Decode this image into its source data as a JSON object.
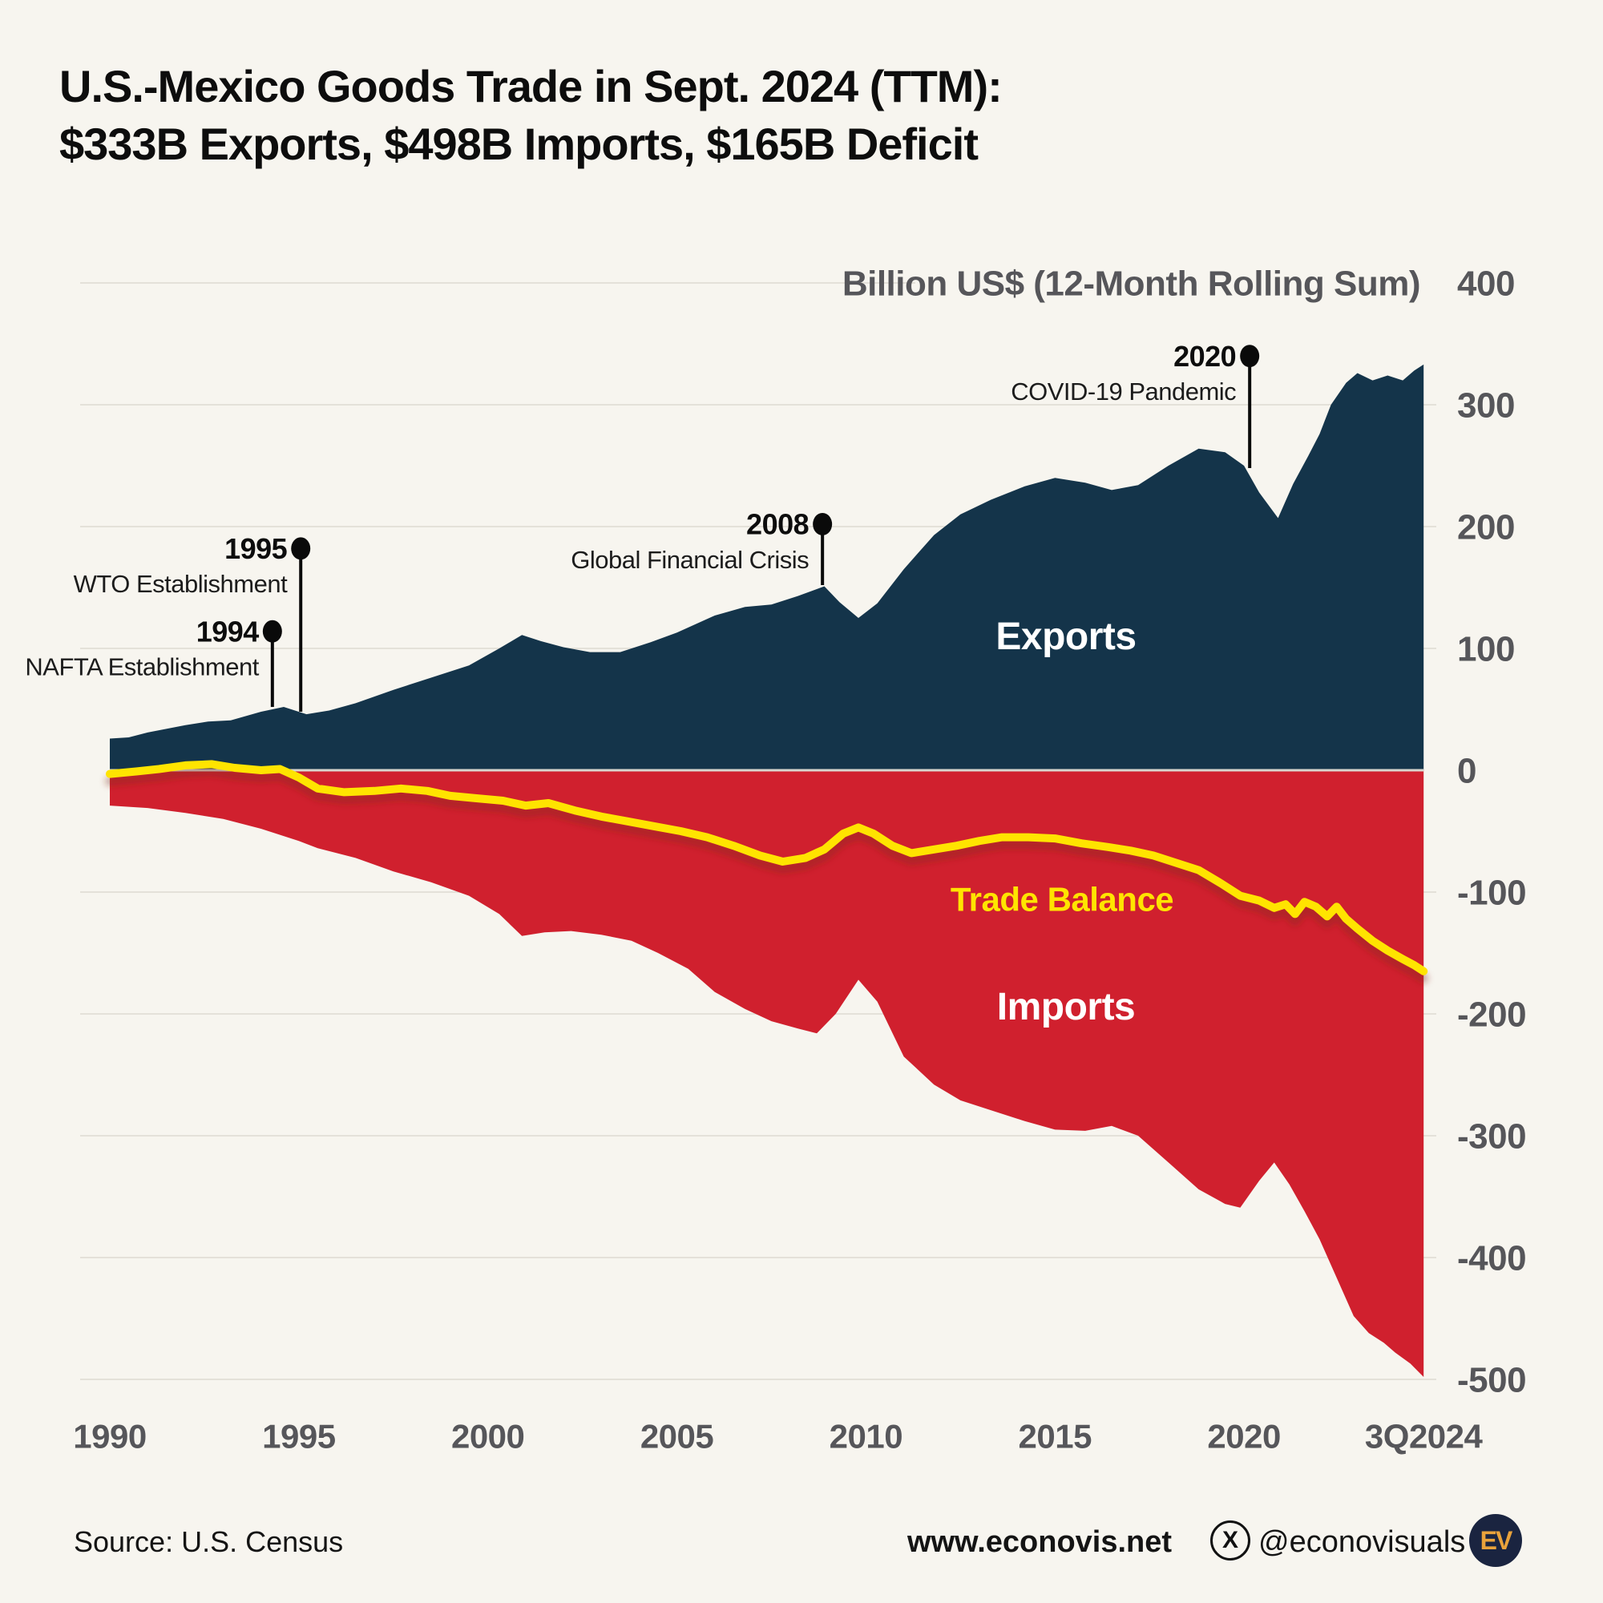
{
  "title": {
    "line1": "U.S.-Mexico Goods Trade in Sept. 2024 (TTM):",
    "line2": "$333B Exports, $498B Imports, $165B Deficit"
  },
  "summary": {
    "period": "Sept. 2024 (TTM)",
    "exports_billion": 333,
    "imports_billion": 498,
    "deficit_billion": 165
  },
  "colors": {
    "background": "#F7F5EF",
    "exports_area": "#14344A",
    "imports_area": "#D0202E",
    "balance_line": "#FFE400",
    "balance_shadow": "#7E241A",
    "gridline": "#E4E1D9",
    "zero_line": "#D8D6CF",
    "tick_text": "#56565A",
    "annotation_text": "#0D0D0D",
    "annotation_sub_text": "#1C1C1C",
    "label_white": "#FFFFFF",
    "logo_circle": "#1A2440",
    "logo_text": "#E9A23B"
  },
  "footer": {
    "source": "Source: U.S. Census",
    "website": "www.econovis.net",
    "x_icon_glyph": "X",
    "social_handle": "@econovisuals",
    "logo_text": "EV"
  },
  "chart_data": {
    "type": "area",
    "title": "U.S.-Mexico Goods Trade, 12-Month Rolling Sum",
    "unit_label": "Billion US$ (12-Month Rolling Sum)",
    "ylim": [
      -500,
      400
    ],
    "y_ticks": [
      400,
      300,
      200,
      100,
      0,
      -100,
      -200,
      -300,
      -400,
      -500
    ],
    "x_ticks": [
      {
        "label": "1990",
        "year": 1990
      },
      {
        "label": "1995",
        "year": 1995
      },
      {
        "label": "2000",
        "year": 2000
      },
      {
        "label": "2005",
        "year": 2005
      },
      {
        "label": "2010",
        "year": 2010
      },
      {
        "label": "2015",
        "year": 2015
      },
      {
        "label": "2020",
        "year": 2020
      },
      {
        "label": "3Q2024",
        "year": 2024.75
      }
    ],
    "grid": true,
    "legend_position": "inline-labels",
    "series": [
      {
        "name": "Exports",
        "kind": "area-above-zero",
        "label_pos": {
          "x": 1330,
          "y": 793,
          "size": 48
        },
        "points": [
          [
            1990,
            26
          ],
          [
            1990.5,
            27
          ],
          [
            1991,
            31
          ],
          [
            1992,
            37
          ],
          [
            1992.6,
            40
          ],
          [
            1993.2,
            41
          ],
          [
            1994,
            48
          ],
          [
            1994.6,
            52
          ],
          [
            1995.2,
            46
          ],
          [
            1995.8,
            49
          ],
          [
            1996.5,
            55
          ],
          [
            1997.5,
            66
          ],
          [
            1998.5,
            76
          ],
          [
            1999.5,
            86
          ],
          [
            2000.3,
            100
          ],
          [
            2000.9,
            111
          ],
          [
            2001.4,
            106
          ],
          [
            2002,
            101
          ],
          [
            2002.7,
            97
          ],
          [
            2003.5,
            97
          ],
          [
            2004.3,
            105
          ],
          [
            2005,
            113
          ],
          [
            2006,
            127
          ],
          [
            2006.8,
            134
          ],
          [
            2007.5,
            136
          ],
          [
            2008.2,
            143
          ],
          [
            2008.9,
            151
          ],
          [
            2009.3,
            138
          ],
          [
            2009.8,
            125
          ],
          [
            2010.3,
            137
          ],
          [
            2011,
            165
          ],
          [
            2011.8,
            193
          ],
          [
            2012.5,
            210
          ],
          [
            2013.3,
            222
          ],
          [
            2014.2,
            233
          ],
          [
            2015,
            240
          ],
          [
            2015.8,
            236
          ],
          [
            2016.5,
            230
          ],
          [
            2017.2,
            234
          ],
          [
            2018,
            250
          ],
          [
            2018.8,
            264
          ],
          [
            2019.5,
            261
          ],
          [
            2020,
            250
          ],
          [
            2020.4,
            228
          ],
          [
            2020.9,
            207
          ],
          [
            2021.3,
            235
          ],
          [
            2021.7,
            258
          ],
          [
            2022,
            276
          ],
          [
            2022.3,
            300
          ],
          [
            2022.7,
            318
          ],
          [
            2023,
            326
          ],
          [
            2023.4,
            320
          ],
          [
            2023.8,
            324
          ],
          [
            2024.2,
            320
          ],
          [
            2024.5,
            328
          ],
          [
            2024.75,
            333
          ]
        ]
      },
      {
        "name": "Imports",
        "kind": "area-below-zero",
        "label_pos": {
          "x": 1330,
          "y": 1255,
          "size": 48
        },
        "points": [
          [
            1990,
            29
          ],
          [
            1991,
            31
          ],
          [
            1992,
            35
          ],
          [
            1993,
            40
          ],
          [
            1994,
            48
          ],
          [
            1995,
            58
          ],
          [
            1995.5,
            64
          ],
          [
            1996.5,
            72
          ],
          [
            1997.5,
            83
          ],
          [
            1998.5,
            92
          ],
          [
            1999.5,
            103
          ],
          [
            2000.3,
            118
          ],
          [
            2000.9,
            136
          ],
          [
            2001.5,
            133
          ],
          [
            2002.2,
            132
          ],
          [
            2003,
            135
          ],
          [
            2003.8,
            140
          ],
          [
            2004.5,
            150
          ],
          [
            2005.3,
            163
          ],
          [
            2006,
            182
          ],
          [
            2006.8,
            196
          ],
          [
            2007.5,
            206
          ],
          [
            2008.2,
            212
          ],
          [
            2008.7,
            216
          ],
          [
            2009.2,
            200
          ],
          [
            2009.8,
            172
          ],
          [
            2010.3,
            190
          ],
          [
            2011,
            235
          ],
          [
            2011.8,
            258
          ],
          [
            2012.5,
            271
          ],
          [
            2013.3,
            279
          ],
          [
            2014.2,
            288
          ],
          [
            2015,
            295
          ],
          [
            2015.8,
            296
          ],
          [
            2016.5,
            292
          ],
          [
            2017.2,
            300
          ],
          [
            2018,
            322
          ],
          [
            2018.8,
            344
          ],
          [
            2019.5,
            356
          ],
          [
            2019.9,
            359
          ],
          [
            2020.4,
            337
          ],
          [
            2020.8,
            322
          ],
          [
            2021.2,
            340
          ],
          [
            2021.6,
            362
          ],
          [
            2022,
            385
          ],
          [
            2022.5,
            420
          ],
          [
            2022.9,
            448
          ],
          [
            2023.3,
            462
          ],
          [
            2023.7,
            470
          ],
          [
            2024,
            478
          ],
          [
            2024.4,
            487
          ],
          [
            2024.75,
            498
          ]
        ]
      },
      {
        "name": "Trade Balance",
        "kind": "line",
        "label_pos": {
          "x": 1325,
          "y": 1122,
          "size": 42
        },
        "points": [
          [
            1990,
            -3
          ],
          [
            1990.7,
            -1
          ],
          [
            1991.3,
            1
          ],
          [
            1992,
            4
          ],
          [
            1992.7,
            5
          ],
          [
            1993.3,
            2
          ],
          [
            1994,
            0
          ],
          [
            1994.5,
            1
          ],
          [
            1995,
            -6
          ],
          [
            1995.5,
            -15
          ],
          [
            1996.2,
            -18
          ],
          [
            1997,
            -17
          ],
          [
            1997.7,
            -15
          ],
          [
            1998.4,
            -17
          ],
          [
            1999,
            -21
          ],
          [
            1999.7,
            -23
          ],
          [
            2000.4,
            -25
          ],
          [
            2001,
            -29
          ],
          [
            2001.6,
            -27
          ],
          [
            2002.3,
            -33
          ],
          [
            2003,
            -38
          ],
          [
            2003.7,
            -42
          ],
          [
            2004.4,
            -46
          ],
          [
            2005.1,
            -50
          ],
          [
            2005.8,
            -55
          ],
          [
            2006.5,
            -62
          ],
          [
            2007.2,
            -70
          ],
          [
            2007.8,
            -75
          ],
          [
            2008.4,
            -72
          ],
          [
            2008.9,
            -65
          ],
          [
            2009.4,
            -52
          ],
          [
            2009.8,
            -47
          ],
          [
            2010.2,
            -52
          ],
          [
            2010.7,
            -62
          ],
          [
            2011.2,
            -68
          ],
          [
            2011.8,
            -65
          ],
          [
            2012.4,
            -62
          ],
          [
            2013,
            -58
          ],
          [
            2013.6,
            -55
          ],
          [
            2014.3,
            -55
          ],
          [
            2015,
            -56
          ],
          [
            2015.7,
            -60
          ],
          [
            2016.4,
            -63
          ],
          [
            2017,
            -66
          ],
          [
            2017.6,
            -70
          ],
          [
            2018.2,
            -76
          ],
          [
            2018.8,
            -82
          ],
          [
            2019.4,
            -93
          ],
          [
            2019.9,
            -103
          ],
          [
            2020.4,
            -107
          ],
          [
            2020.8,
            -113
          ],
          [
            2021.1,
            -110
          ],
          [
            2021.35,
            -118
          ],
          [
            2021.6,
            -108
          ],
          [
            2021.9,
            -112
          ],
          [
            2022.2,
            -120
          ],
          [
            2022.45,
            -112
          ],
          [
            2022.7,
            -122
          ],
          [
            2023,
            -130
          ],
          [
            2023.4,
            -140
          ],
          [
            2023.8,
            -148
          ],
          [
            2024.2,
            -155
          ],
          [
            2024.5,
            -160
          ],
          [
            2024.75,
            -165
          ]
        ]
      }
    ],
    "annotations": [
      {
        "year": "1994",
        "text": "NAFTA Establishment",
        "x_year": 1994.3,
        "dot_value": 114,
        "line_to_value": 52
      },
      {
        "year": "1995",
        "text": "WTO Establishment",
        "x_year": 1995.05,
        "dot_value": 182,
        "line_to_value": 48
      },
      {
        "year": "2008",
        "text": "Global Financial Crisis",
        "x_year": 2008.85,
        "dot_value": 202,
        "line_to_value": 152
      },
      {
        "year": "2020",
        "text": "COVID-19 Pandemic",
        "x_year": 2020.15,
        "dot_value": 340,
        "line_to_value": 248
      }
    ]
  }
}
